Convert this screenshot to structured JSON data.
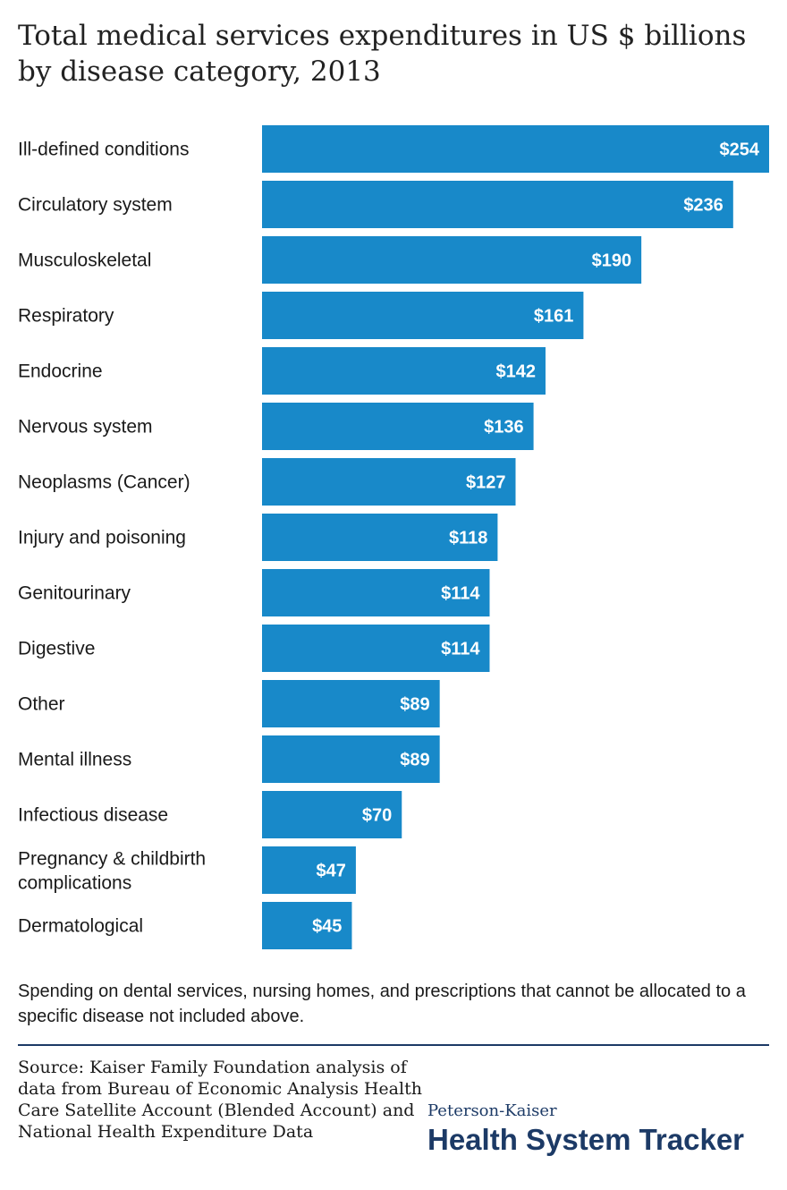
{
  "chart_data": {
    "type": "bar",
    "orientation": "horizontal",
    "title": "Total medical services expenditures in US $ billions by disease category, 2013",
    "categories": [
      "Ill-defined conditions",
      "Circulatory system",
      "Musculoskeletal",
      "Respiratory",
      "Endocrine",
      "Nervous system",
      "Neoplasms (Cancer)",
      "Injury and poisoning",
      "Genitourinary",
      "Digestive",
      "Other",
      "Mental illness",
      "Infectious disease",
      "Pregnancy & childbirth complications",
      "Dermatological"
    ],
    "values": [
      254,
      236,
      190,
      161,
      142,
      136,
      127,
      118,
      114,
      114,
      89,
      89,
      70,
      47,
      45
    ],
    "value_labels": [
      "$254",
      "$236",
      "$190",
      "$161",
      "$142",
      "$136",
      "$127",
      "$118",
      "$114",
      "$114",
      "$89",
      "$89",
      "$70",
      "$47",
      "$45"
    ],
    "bar_color": "#1889c9",
    "xlim": [
      0,
      254
    ],
    "grid": false,
    "legend": "none"
  },
  "footnote": "Spending on dental services, nursing homes, and prescriptions that cannot be allocated to a specific disease not included above.",
  "source": "Source: Kaiser Family Foundation analysis of data from Bureau of Economic Analysis Health Care Satellite Account (Blended Account) and National Health Expenditure Data",
  "brand": {
    "top": "Peterson-Kaiser",
    "main": "Health System Tracker",
    "color": "#1c3a66"
  }
}
